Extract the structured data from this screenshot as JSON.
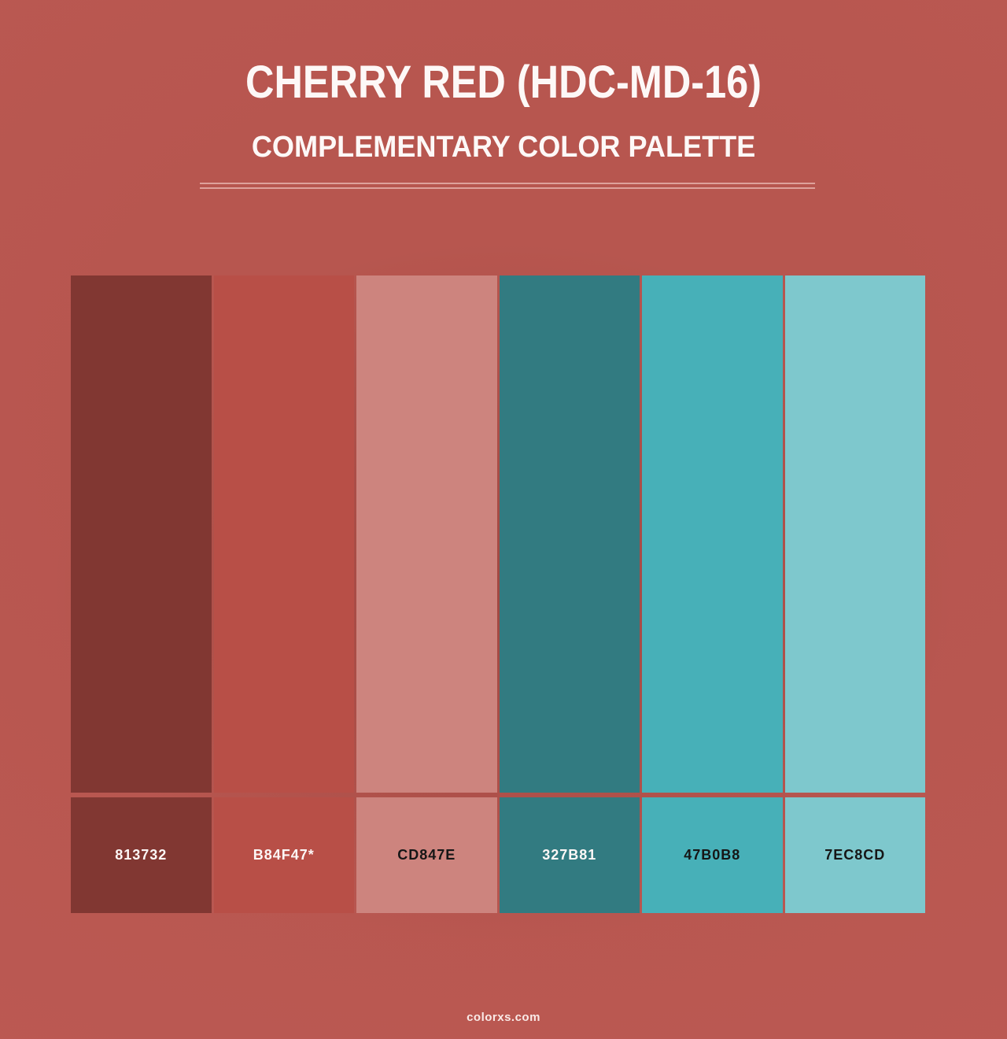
{
  "header": {
    "title": "CHERRY RED (HDC-MD-16)",
    "subtitle": "COMPLEMENTARY COLOR PALETTE"
  },
  "palette": {
    "swatches": [
      {
        "hex": "813732",
        "color": "#813732",
        "label_color": "#fcf7f6"
      },
      {
        "hex": "B84F47*",
        "color": "#B84F47",
        "label_color": "#fcf7f6"
      },
      {
        "hex": "CD847E",
        "color": "#CD847E",
        "label_color": "#161616"
      },
      {
        "hex": "327B81",
        "color": "#327B81",
        "label_color": "#fcf7f6"
      },
      {
        "hex": "47B0B8",
        "color": "#47B0B8",
        "label_color": "#161616"
      },
      {
        "hex": "7EC8CD",
        "color": "#7EC8CD",
        "label_color": "#161616"
      }
    ]
  },
  "footer": {
    "site": "colorxs.com"
  },
  "colors": {
    "background": "#b7564f",
    "divider": "#d8a8a2",
    "title_text": "#fdf8f7"
  }
}
